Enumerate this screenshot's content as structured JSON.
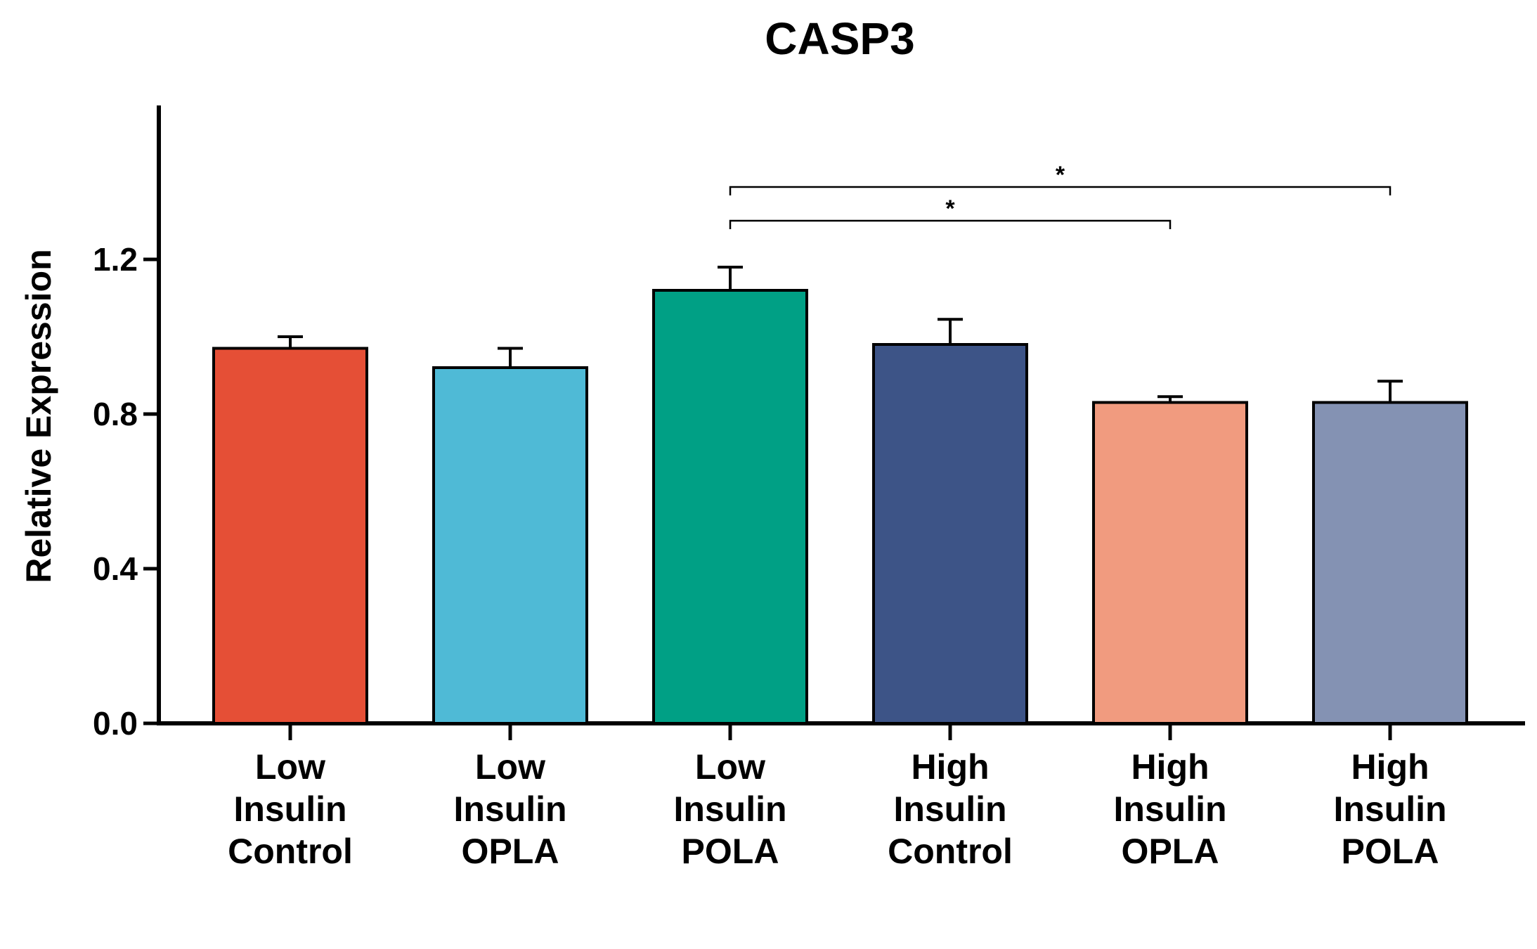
{
  "chart_data": {
    "type": "bar",
    "title": "CASP3",
    "xlabel": "",
    "ylabel": "Relative Expression",
    "ylim": [
      0,
      1.6
    ],
    "yticks": [
      0.0,
      0.4,
      0.8,
      1.2
    ],
    "ytick_labels": [
      "0.0",
      "0.4",
      "0.8",
      "1.2"
    ],
    "grid": false,
    "legend": "none",
    "categories": [
      [
        "Low",
        "Insulin",
        "Control"
      ],
      [
        "Low",
        "Insulin",
        "OPLA"
      ],
      [
        "Low",
        "Insulin",
        "POLA"
      ],
      [
        "High",
        "Insulin",
        "Control"
      ],
      [
        "High",
        "Insulin",
        "OPLA"
      ],
      [
        "High",
        "Insulin",
        "POLA"
      ]
    ],
    "values": [
      0.97,
      0.92,
      1.12,
      0.98,
      0.83,
      0.83
    ],
    "errors": [
      0.03,
      0.05,
      0.06,
      0.065,
      0.015,
      0.055
    ],
    "colors": [
      "#e54f36",
      "#4fbad6",
      "#00a085",
      "#3d5487",
      "#f19b7f",
      "#8492b3"
    ],
    "significance": [
      {
        "from": 2,
        "to": 4,
        "label": "*"
      },
      {
        "from": 2,
        "to": 5,
        "label": "*"
      }
    ]
  }
}
